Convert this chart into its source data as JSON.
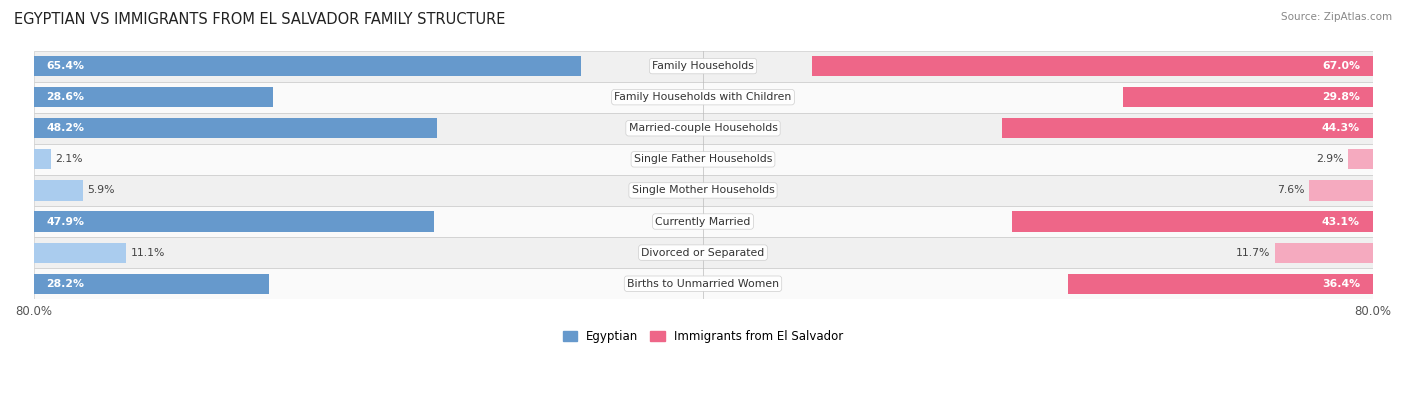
{
  "title": "EGYPTIAN VS IMMIGRANTS FROM EL SALVADOR FAMILY STRUCTURE",
  "source": "Source: ZipAtlas.com",
  "categories": [
    "Family Households",
    "Family Households with Children",
    "Married-couple Households",
    "Single Father Households",
    "Single Mother Households",
    "Currently Married",
    "Divorced or Separated",
    "Births to Unmarried Women"
  ],
  "egyptian_values": [
    65.4,
    28.6,
    48.2,
    2.1,
    5.9,
    47.9,
    11.1,
    28.2
  ],
  "salvador_values": [
    67.0,
    29.8,
    44.3,
    2.9,
    7.6,
    43.1,
    11.7,
    36.4
  ],
  "max_val": 80.0,
  "egyptian_color_strong": "#6699CC",
  "egyptian_color_light": "#AACCEE",
  "salvador_color_strong": "#EE6688",
  "salvador_color_light": "#F5AABF",
  "bar_height": 0.65,
  "bg_row_even": "#F0F0F0",
  "bg_row_odd": "#FAFAFA",
  "row_border_color": "#CCCCCC",
  "legend_egyptian": "Egyptian",
  "legend_salvador": "Immigrants from El Salvador",
  "label_threshold": 15
}
